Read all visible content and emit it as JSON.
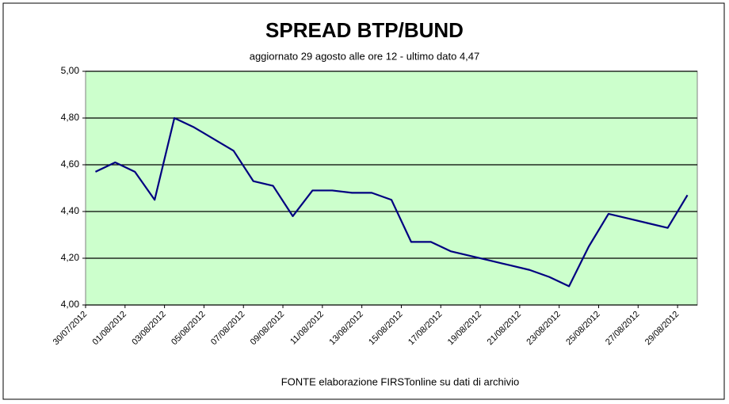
{
  "chart_data": {
    "type": "line",
    "title": "SPREAD  BTP/BUND",
    "subtitle": "aggiornato 29 agosto alle ore 12  -  ultimo dato 4,47",
    "source": "FONTE elaborazione FIRSTonline su dati di archivio",
    "categories": [
      "30/07/2012",
      null,
      "01/08/2012",
      null,
      "03/08/2012",
      null,
      "05/08/2012",
      null,
      "07/08/2012",
      null,
      "09/08/2012",
      null,
      "11/08/2012",
      null,
      "13/08/2012",
      null,
      "15/08/2012",
      null,
      "17/08/2012",
      null,
      "19/08/2012",
      null,
      "21/08/2012",
      null,
      "23/08/2012",
      null,
      "25/08/2012",
      null,
      "27/08/2012",
      null,
      "29/08/2012"
    ],
    "series": [
      {
        "color": "#000080",
        "values": [
          4.57,
          4.61,
          4.57,
          4.45,
          4.8,
          4.76,
          4.71,
          4.66,
          4.53,
          4.51,
          4.38,
          4.49,
          4.49,
          4.48,
          4.48,
          4.45,
          4.27,
          4.27,
          4.23,
          4.21,
          4.19,
          4.17,
          4.15,
          4.12,
          4.08,
          4.25,
          4.39,
          4.37,
          4.35,
          4.33,
          4.47
        ]
      }
    ],
    "ylim": [
      4.0,
      5.0
    ],
    "yticks": [
      {
        "value": 4.0,
        "label": "4,00"
      },
      {
        "value": 4.2,
        "label": "4,20"
      },
      {
        "value": 4.4,
        "label": "4,40"
      },
      {
        "value": 4.6,
        "label": "4,60"
      },
      {
        "value": 4.8,
        "label": "4,80"
      },
      {
        "value": 5.0,
        "label": "5,00"
      }
    ],
    "grid": true,
    "plot_background": "#ccffcc"
  }
}
